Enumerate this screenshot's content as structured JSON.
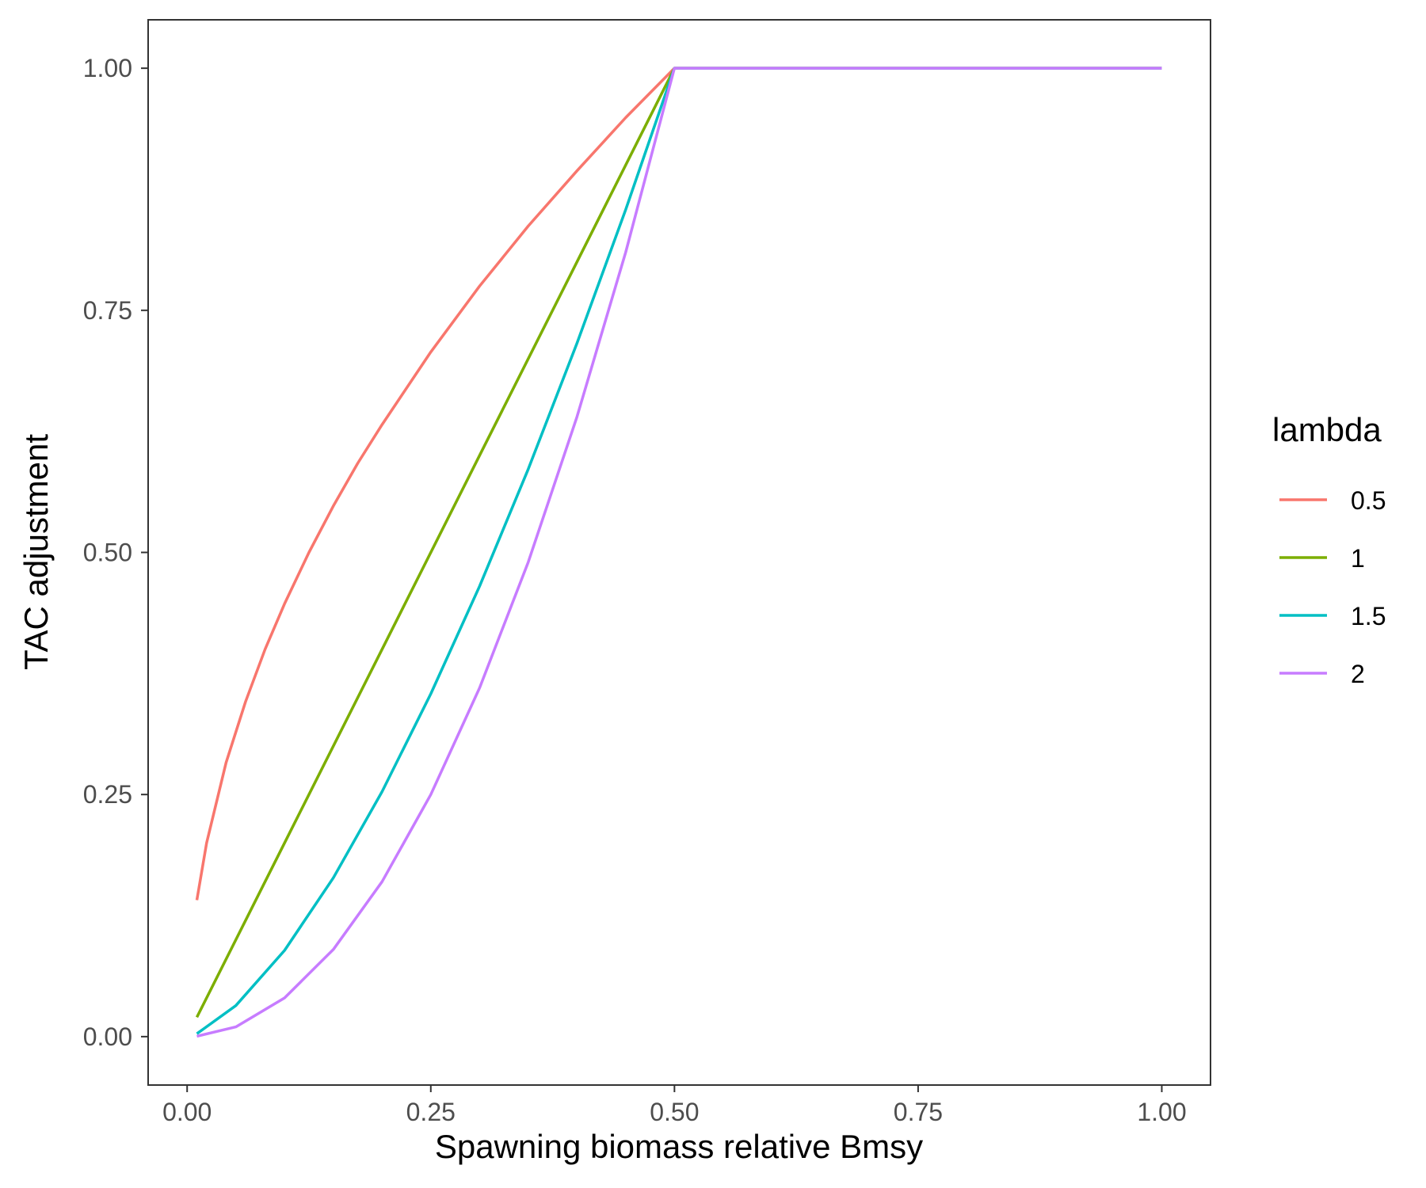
{
  "chart_data": {
    "type": "line",
    "xlabel": "Spawning biomass relative Bmsy",
    "ylabel": "TAC adjustment",
    "xlim": [
      -0.04,
      1.05
    ],
    "ylim": [
      -0.05,
      1.05
    ],
    "x_ticks": [
      "0.00",
      "0.25",
      "0.50",
      "0.75",
      "1.00"
    ],
    "y_ticks": [
      "0.00",
      "0.25",
      "0.50",
      "0.75",
      "1.00"
    ],
    "grid": false,
    "legend": {
      "title": "lambda",
      "position": "right"
    },
    "series": [
      {
        "name": "0.5",
        "color": "#F8766D",
        "x": [
          0.01,
          0.02,
          0.04,
          0.06,
          0.08,
          0.1,
          0.125,
          0.15,
          0.175,
          0.2,
          0.25,
          0.3,
          0.35,
          0.4,
          0.45,
          0.5,
          0.6,
          0.7,
          0.8,
          0.9,
          1.0
        ],
        "y": [
          0.141,
          0.2,
          0.283,
          0.346,
          0.4,
          0.447,
          0.5,
          0.548,
          0.592,
          0.632,
          0.707,
          0.775,
          0.837,
          0.894,
          0.949,
          1.0,
          1.0,
          1.0,
          1.0,
          1.0,
          1.0
        ]
      },
      {
        "name": "1",
        "color": "#7CAE00",
        "x": [
          0.01,
          0.1,
          0.2,
          0.3,
          0.4,
          0.5,
          0.6,
          0.7,
          0.8,
          0.9,
          1.0
        ],
        "y": [
          0.02,
          0.2,
          0.4,
          0.6,
          0.8,
          1.0,
          1.0,
          1.0,
          1.0,
          1.0,
          1.0
        ]
      },
      {
        "name": "1.5",
        "color": "#00BFC4",
        "x": [
          0.01,
          0.05,
          0.1,
          0.15,
          0.2,
          0.25,
          0.3,
          0.35,
          0.4,
          0.45,
          0.5,
          0.6,
          0.7,
          0.8,
          0.9,
          1.0
        ],
        "y": [
          0.003,
          0.032,
          0.089,
          0.164,
          0.253,
          0.354,
          0.465,
          0.586,
          0.716,
          0.854,
          1.0,
          1.0,
          1.0,
          1.0,
          1.0,
          1.0
        ]
      },
      {
        "name": "2",
        "color": "#C77CFF",
        "x": [
          0.01,
          0.05,
          0.1,
          0.15,
          0.2,
          0.25,
          0.3,
          0.35,
          0.4,
          0.45,
          0.5,
          0.6,
          0.7,
          0.8,
          0.9,
          1.0
        ],
        "y": [
          0.0004,
          0.01,
          0.04,
          0.09,
          0.16,
          0.25,
          0.36,
          0.49,
          0.64,
          0.81,
          1.0,
          1.0,
          1.0,
          1.0,
          1.0,
          1.0
        ]
      }
    ]
  }
}
